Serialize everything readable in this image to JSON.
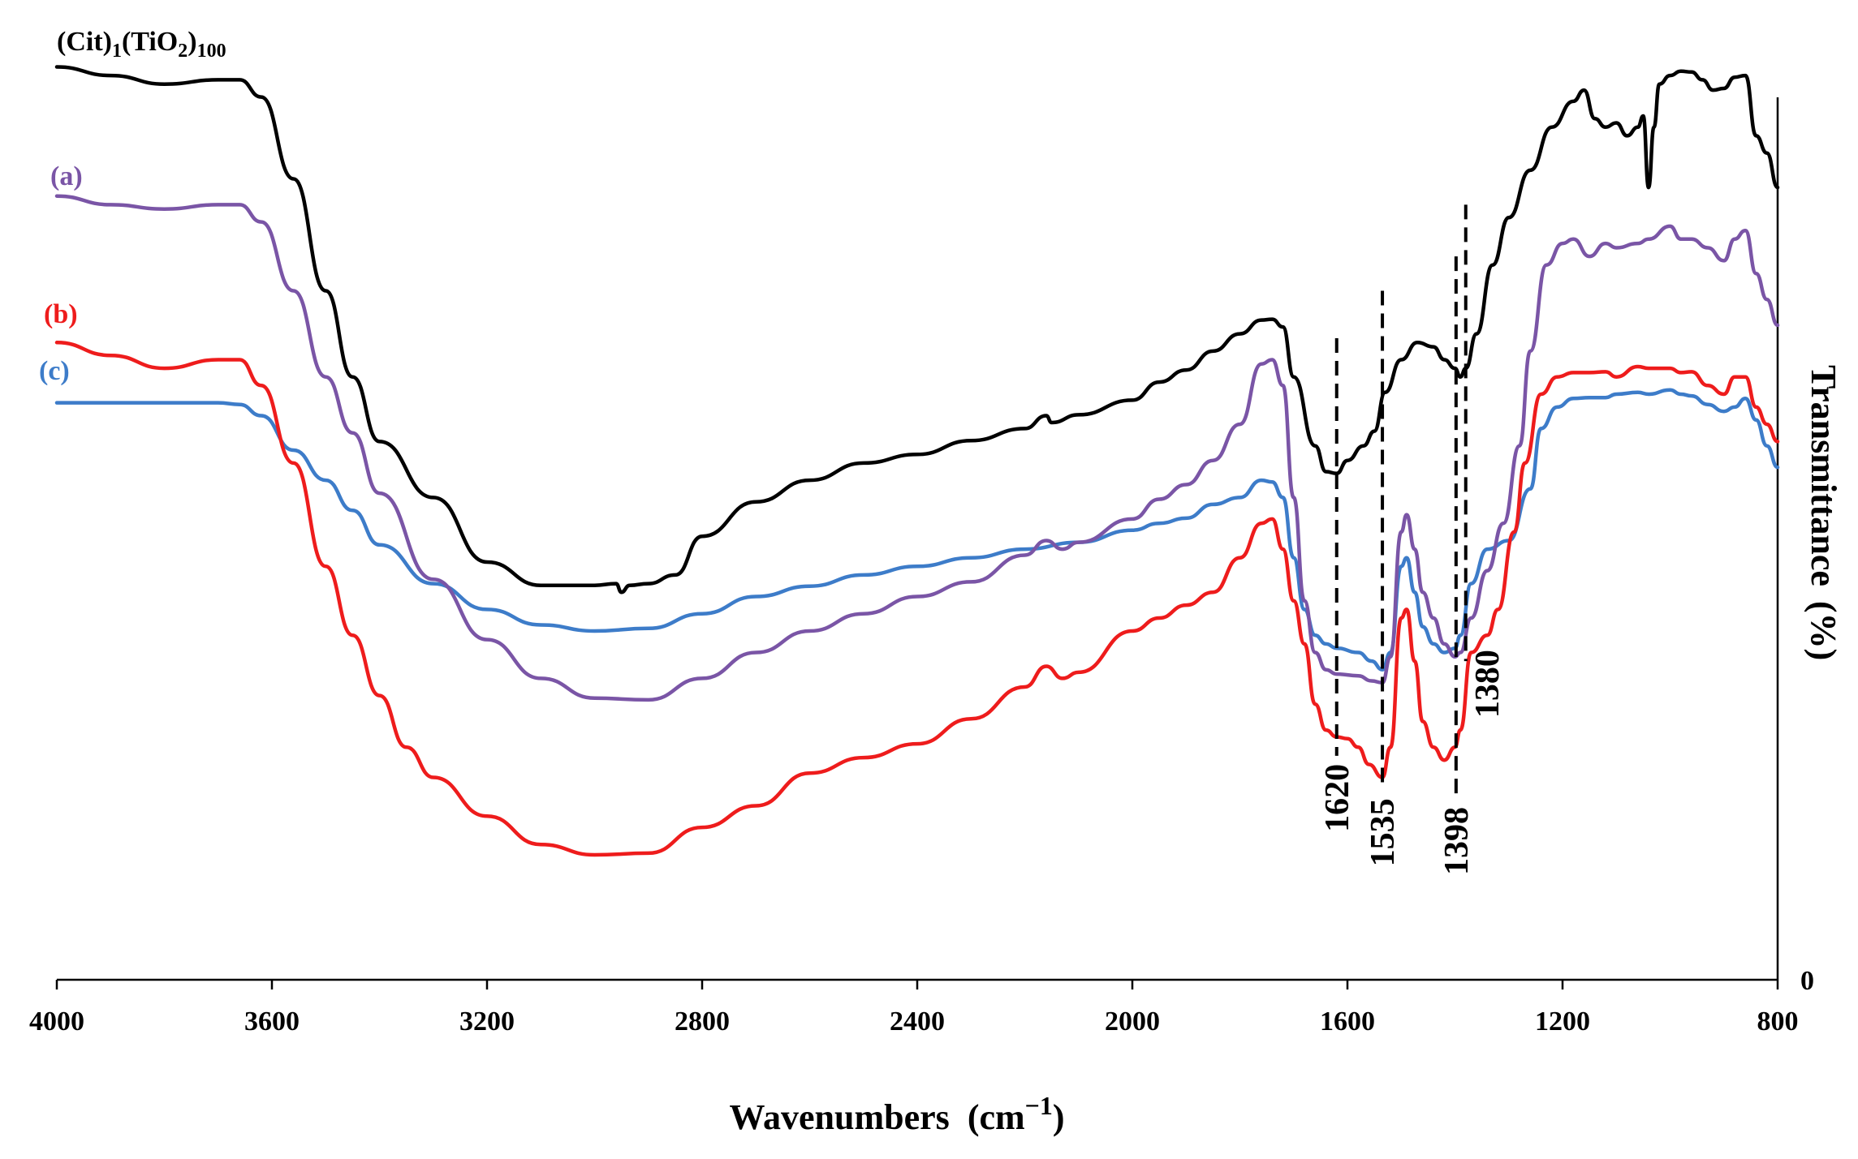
{
  "chart_data": {
    "type": "line",
    "title": "",
    "xlabel": "Wavenumbers",
    "xlabel_unit_base": "(cm",
    "xlabel_unit_exp": "−1",
    "xlabel_unit_close": ")",
    "ylabel": "Transmittance",
    "ylabel_unit": "(%)",
    "xlim": [
      4000,
      800
    ],
    "x_reversed": true,
    "x_ticks": [
      "4000",
      "3600",
      "3200",
      "2800",
      "2400",
      "2000",
      "1600",
      "1200",
      "800"
    ],
    "y_zero_label": "0",
    "grid": false,
    "series": [
      {
        "name": "(Cit)1(TiO2)100",
        "label_main": "(Cit)",
        "label_sub1": "1",
        "label_mid": "(TiO",
        "label_sub2": "2",
        "label_close": ")",
        "label_sub3": "100",
        "color": "#000000",
        "points": [
          [
            4000,
            1.06
          ],
          [
            3900,
            1.05
          ],
          [
            3800,
            1.04
          ],
          [
            3700,
            1.045
          ],
          [
            3660,
            1.045
          ],
          [
            3620,
            1.025
          ],
          [
            3560,
            0.93
          ],
          [
            3500,
            0.8
          ],
          [
            3450,
            0.7
          ],
          [
            3400,
            0.625
          ],
          [
            3300,
            0.56
          ],
          [
            3200,
            0.485
          ],
          [
            3100,
            0.458
          ],
          [
            3000,
            0.458
          ],
          [
            2960,
            0.46
          ],
          [
            2950,
            0.45
          ],
          [
            2935,
            0.458
          ],
          [
            2900,
            0.46
          ],
          [
            2850,
            0.47
          ],
          [
            2800,
            0.515
          ],
          [
            2700,
            0.555
          ],
          [
            2600,
            0.58
          ],
          [
            2500,
            0.6
          ],
          [
            2400,
            0.61
          ],
          [
            2300,
            0.626
          ],
          [
            2200,
            0.64
          ],
          [
            2160,
            0.655
          ],
          [
            2150,
            0.647
          ],
          [
            2100,
            0.656
          ],
          [
            2000,
            0.673
          ],
          [
            1950,
            0.694
          ],
          [
            1900,
            0.708
          ],
          [
            1850,
            0.73
          ],
          [
            1800,
            0.75
          ],
          [
            1760,
            0.766
          ],
          [
            1740,
            0.767
          ],
          [
            1720,
            0.758
          ],
          [
            1700,
            0.7
          ],
          [
            1660,
            0.62
          ],
          [
            1640,
            0.59
          ],
          [
            1620,
            0.588
          ],
          [
            1600,
            0.603
          ],
          [
            1570,
            0.62
          ],
          [
            1550,
            0.637
          ],
          [
            1530,
            0.682
          ],
          [
            1500,
            0.72
          ],
          [
            1470,
            0.74
          ],
          [
            1440,
            0.735
          ],
          [
            1420,
            0.72
          ],
          [
            1400,
            0.71
          ],
          [
            1390,
            0.7
          ],
          [
            1380,
            0.71
          ],
          [
            1360,
            0.75
          ],
          [
            1330,
            0.83
          ],
          [
            1300,
            0.885
          ],
          [
            1260,
            0.94
          ],
          [
            1220,
            0.99
          ],
          [
            1180,
            1.02
          ],
          [
            1160,
            1.033
          ],
          [
            1140,
            1.0
          ],
          [
            1120,
            0.99
          ],
          [
            1100,
            0.995
          ],
          [
            1080,
            0.98
          ],
          [
            1060,
            0.99
          ],
          [
            1050,
            1.003
          ],
          [
            1040,
            0.92
          ],
          [
            1030,
            0.99
          ],
          [
            1020,
            1.04
          ],
          [
            1000,
            1.05
          ],
          [
            980,
            1.055
          ],
          [
            960,
            1.054
          ],
          [
            940,
            1.045
          ],
          [
            920,
            1.033
          ],
          [
            900,
            1.035
          ],
          [
            880,
            1.048
          ],
          [
            860,
            1.05
          ],
          [
            840,
            0.98
          ],
          [
            820,
            0.96
          ],
          [
            800,
            0.92
          ]
        ]
      },
      {
        "name": "(a)",
        "label_main": "(a)",
        "color": "#7A55A6",
        "points": [
          [
            4000,
            0.91
          ],
          [
            3900,
            0.9
          ],
          [
            3800,
            0.895
          ],
          [
            3700,
            0.9
          ],
          [
            3660,
            0.9
          ],
          [
            3620,
            0.88
          ],
          [
            3560,
            0.8
          ],
          [
            3500,
            0.7
          ],
          [
            3450,
            0.635
          ],
          [
            3400,
            0.565
          ],
          [
            3300,
            0.465
          ],
          [
            3200,
            0.395
          ],
          [
            3100,
            0.35
          ],
          [
            3000,
            0.327
          ],
          [
            2900,
            0.325
          ],
          [
            2800,
            0.35
          ],
          [
            2700,
            0.38
          ],
          [
            2600,
            0.405
          ],
          [
            2500,
            0.425
          ],
          [
            2400,
            0.445
          ],
          [
            2300,
            0.462
          ],
          [
            2200,
            0.493
          ],
          [
            2160,
            0.51
          ],
          [
            2130,
            0.5
          ],
          [
            2100,
            0.508
          ],
          [
            2000,
            0.535
          ],
          [
            1950,
            0.558
          ],
          [
            1900,
            0.575
          ],
          [
            1850,
            0.603
          ],
          [
            1800,
            0.645
          ],
          [
            1760,
            0.715
          ],
          [
            1740,
            0.72
          ],
          [
            1720,
            0.69
          ],
          [
            1700,
            0.56
          ],
          [
            1680,
            0.44
          ],
          [
            1660,
            0.38
          ],
          [
            1640,
            0.36
          ],
          [
            1620,
            0.355
          ],
          [
            1580,
            0.353
          ],
          [
            1555,
            0.347
          ],
          [
            1535,
            0.345
          ],
          [
            1520,
            0.375
          ],
          [
            1500,
            0.52
          ],
          [
            1490,
            0.54
          ],
          [
            1475,
            0.5
          ],
          [
            1460,
            0.45
          ],
          [
            1440,
            0.42
          ],
          [
            1420,
            0.39
          ],
          [
            1400,
            0.375
          ],
          [
            1390,
            0.38
          ],
          [
            1370,
            0.42
          ],
          [
            1340,
            0.475
          ],
          [
            1310,
            0.53
          ],
          [
            1280,
            0.62
          ],
          [
            1260,
            0.73
          ],
          [
            1230,
            0.83
          ],
          [
            1200,
            0.855
          ],
          [
            1180,
            0.86
          ],
          [
            1150,
            0.84
          ],
          [
            1120,
            0.855
          ],
          [
            1100,
            0.85
          ],
          [
            1060,
            0.855
          ],
          [
            1040,
            0.86
          ],
          [
            1000,
            0.875
          ],
          [
            980,
            0.86
          ],
          [
            960,
            0.86
          ],
          [
            930,
            0.85
          ],
          [
            900,
            0.835
          ],
          [
            880,
            0.86
          ],
          [
            860,
            0.87
          ],
          [
            840,
            0.82
          ],
          [
            820,
            0.79
          ],
          [
            800,
            0.76
          ]
        ]
      },
      {
        "name": "(b)",
        "label_main": "(b)",
        "color": "#EE1C1C",
        "points": [
          [
            4000,
            0.74
          ],
          [
            3900,
            0.725
          ],
          [
            3800,
            0.71
          ],
          [
            3700,
            0.72
          ],
          [
            3660,
            0.72
          ],
          [
            3620,
            0.69
          ],
          [
            3560,
            0.6
          ],
          [
            3500,
            0.48
          ],
          [
            3450,
            0.4
          ],
          [
            3400,
            0.33
          ],
          [
            3350,
            0.27
          ],
          [
            3300,
            0.235
          ],
          [
            3200,
            0.19
          ],
          [
            3100,
            0.157
          ],
          [
            3000,
            0.145
          ],
          [
            2900,
            0.147
          ],
          [
            2800,
            0.177
          ],
          [
            2700,
            0.202
          ],
          [
            2600,
            0.24
          ],
          [
            2500,
            0.258
          ],
          [
            2400,
            0.274
          ],
          [
            2300,
            0.303
          ],
          [
            2200,
            0.34
          ],
          [
            2160,
            0.364
          ],
          [
            2130,
            0.35
          ],
          [
            2100,
            0.357
          ],
          [
            2000,
            0.405
          ],
          [
            1950,
            0.42
          ],
          [
            1900,
            0.435
          ],
          [
            1850,
            0.45
          ],
          [
            1800,
            0.49
          ],
          [
            1760,
            0.53
          ],
          [
            1740,
            0.535
          ],
          [
            1720,
            0.5
          ],
          [
            1700,
            0.44
          ],
          [
            1680,
            0.39
          ],
          [
            1660,
            0.32
          ],
          [
            1640,
            0.29
          ],
          [
            1620,
            0.282
          ],
          [
            1600,
            0.28
          ],
          [
            1580,
            0.27
          ],
          [
            1560,
            0.25
          ],
          [
            1535,
            0.235
          ],
          [
            1520,
            0.27
          ],
          [
            1500,
            0.42
          ],
          [
            1490,
            0.43
          ],
          [
            1475,
            0.37
          ],
          [
            1460,
            0.3
          ],
          [
            1440,
            0.27
          ],
          [
            1420,
            0.255
          ],
          [
            1400,
            0.27
          ],
          [
            1390,
            0.29
          ],
          [
            1370,
            0.38
          ],
          [
            1340,
            0.4
          ],
          [
            1320,
            0.43
          ],
          [
            1290,
            0.52
          ],
          [
            1270,
            0.6
          ],
          [
            1240,
            0.68
          ],
          [
            1210,
            0.7
          ],
          [
            1180,
            0.705
          ],
          [
            1150,
            0.705
          ],
          [
            1120,
            0.706
          ],
          [
            1100,
            0.7
          ],
          [
            1060,
            0.712
          ],
          [
            1040,
            0.71
          ],
          [
            1000,
            0.71
          ],
          [
            980,
            0.705
          ],
          [
            960,
            0.706
          ],
          [
            930,
            0.69
          ],
          [
            900,
            0.68
          ],
          [
            880,
            0.7
          ],
          [
            860,
            0.7
          ],
          [
            840,
            0.665
          ],
          [
            820,
            0.645
          ],
          [
            800,
            0.625
          ]
        ]
      },
      {
        "name": "(c)",
        "label_main": "(c)",
        "color": "#3D7CC9",
        "points": [
          [
            4000,
            0.67
          ],
          [
            3900,
            0.67
          ],
          [
            3800,
            0.67
          ],
          [
            3700,
            0.67
          ],
          [
            3660,
            0.668
          ],
          [
            3620,
            0.655
          ],
          [
            3560,
            0.615
          ],
          [
            3500,
            0.58
          ],
          [
            3450,
            0.545
          ],
          [
            3400,
            0.505
          ],
          [
            3300,
            0.46
          ],
          [
            3200,
            0.43
          ],
          [
            3100,
            0.412
          ],
          [
            3000,
            0.405
          ],
          [
            2900,
            0.408
          ],
          [
            2800,
            0.425
          ],
          [
            2700,
            0.445
          ],
          [
            2600,
            0.457
          ],
          [
            2500,
            0.47
          ],
          [
            2400,
            0.48
          ],
          [
            2300,
            0.49
          ],
          [
            2200,
            0.5
          ],
          [
            2100,
            0.508
          ],
          [
            2000,
            0.522
          ],
          [
            1950,
            0.53
          ],
          [
            1900,
            0.536
          ],
          [
            1850,
            0.552
          ],
          [
            1800,
            0.56
          ],
          [
            1760,
            0.58
          ],
          [
            1740,
            0.578
          ],
          [
            1720,
            0.56
          ],
          [
            1700,
            0.49
          ],
          [
            1680,
            0.43
          ],
          [
            1660,
            0.4
          ],
          [
            1640,
            0.39
          ],
          [
            1620,
            0.385
          ],
          [
            1580,
            0.38
          ],
          [
            1555,
            0.37
          ],
          [
            1535,
            0.36
          ],
          [
            1520,
            0.38
          ],
          [
            1500,
            0.48
          ],
          [
            1490,
            0.49
          ],
          [
            1475,
            0.45
          ],
          [
            1460,
            0.41
          ],
          [
            1440,
            0.39
          ],
          [
            1420,
            0.38
          ],
          [
            1400,
            0.385
          ],
          [
            1390,
            0.4
          ],
          [
            1370,
            0.46
          ],
          [
            1340,
            0.5
          ],
          [
            1300,
            0.51
          ],
          [
            1260,
            0.57
          ],
          [
            1240,
            0.64
          ],
          [
            1210,
            0.665
          ],
          [
            1180,
            0.675
          ],
          [
            1150,
            0.676
          ],
          [
            1120,
            0.676
          ],
          [
            1100,
            0.68
          ],
          [
            1060,
            0.682
          ],
          [
            1040,
            0.68
          ],
          [
            1000,
            0.685
          ],
          [
            980,
            0.68
          ],
          [
            960,
            0.678
          ],
          [
            930,
            0.668
          ],
          [
            900,
            0.66
          ],
          [
            880,
            0.665
          ],
          [
            860,
            0.675
          ],
          [
            840,
            0.65
          ],
          [
            820,
            0.62
          ],
          [
            800,
            0.595
          ]
        ]
      }
    ],
    "peak_annotations": [
      {
        "wavenumber": 1620,
        "label": "1620",
        "y_top": 0.745,
        "y_bottom": 0.26
      },
      {
        "wavenumber": 1535,
        "label": "1535",
        "y_top": 0.8,
        "y_bottom": 0.22
      },
      {
        "wavenumber": 1398,
        "label": "1398",
        "y_top": 0.84,
        "y_bottom": 0.21
      },
      {
        "wavenumber": 1380,
        "label": "1380",
        "y_top": 0.9,
        "y_bottom": 0.37
      }
    ]
  }
}
